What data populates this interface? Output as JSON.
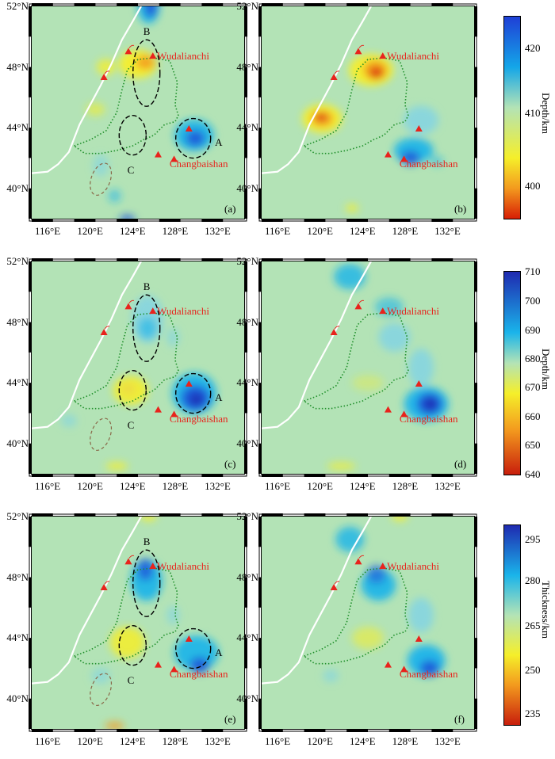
{
  "map": {
    "lat_labels": [
      "52°N",
      "48°N",
      "44°N",
      "40°N"
    ],
    "lon_labels": [
      "116°E",
      "120°E",
      "124°E",
      "128°E",
      "132°E"
    ],
    "volcanoes": {
      "north": "Wudalianchi",
      "south": "Changbaishan"
    },
    "regions": {
      "a": "A",
      "b": "B",
      "c": "C"
    },
    "panels": [
      {
        "label": "(a)"
      },
      {
        "label": "(b)"
      },
      {
        "label": "(c)"
      },
      {
        "label": "(d)"
      },
      {
        "label": "(e)"
      },
      {
        "label": "(f)"
      }
    ]
  },
  "colorbars": [
    {
      "title": "Depth/km",
      "ticks": [
        "420",
        "410",
        "400"
      ],
      "range": [
        395,
        425
      ]
    },
    {
      "title": "Depth/km",
      "ticks": [
        "710",
        "700",
        "690",
        "680",
        "670",
        "660",
        "650",
        "640"
      ],
      "range": [
        640,
        710
      ]
    },
    {
      "title": "Thickness/km",
      "ticks": [
        "295",
        "280",
        "265",
        "250",
        "235"
      ],
      "range": [
        230,
        300
      ]
    }
  ],
  "colors": {
    "background": "#b3e3b6",
    "deep": "#1f3fd6",
    "mid_blue": "#1ab4ea",
    "yellow": "#f5ef2a",
    "red": "#d81e05",
    "volcano": "#e8231c",
    "boundary": "#1f8f2a"
  }
}
